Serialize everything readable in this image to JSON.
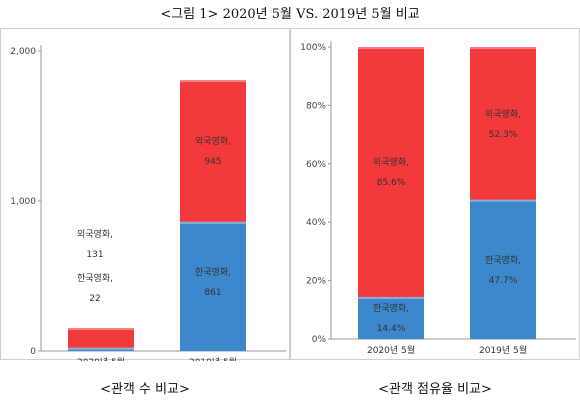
{
  "title": "<그림 1> 2020년 5월 VS. 2019년 5월 비교",
  "captions": [
    "<관객 수 비교>",
    "<관객 점유율 비교>"
  ],
  "colors": {
    "foreign": "#f23a3a",
    "korean": "#3d87cc",
    "axis": "#999999"
  },
  "chart_data": [
    {
      "type": "bar",
      "stacked": true,
      "categories": [
        "2020년 5월",
        "2019년 5월"
      ],
      "series": [
        {
          "name": "한국영화",
          "values": [
            22,
            861
          ],
          "labels": [
            "한국영화,",
            "한국영화,"
          ],
          "value_labels": [
            "22",
            "861"
          ]
        },
        {
          "name": "외국영화",
          "values": [
            131,
            945
          ],
          "labels": [
            "외국영화,",
            "외국영화,"
          ],
          "value_labels": [
            "131",
            "945"
          ]
        }
      ],
      "yticks": [
        "0",
        "1,000",
        "2,000"
      ],
      "ytick_values": [
        0,
        1000,
        2000
      ],
      "ylim": [
        0,
        2000
      ],
      "grid": false
    },
    {
      "type": "bar",
      "stacked": true,
      "percent": true,
      "categories": [
        "2020년 5월",
        "2019년 5월"
      ],
      "series": [
        {
          "name": "한국영화",
          "values": [
            14.4,
            47.7
          ],
          "labels": [
            "한국영화,",
            "한국영화,"
          ],
          "value_labels": [
            "14.4%",
            "47.7%"
          ]
        },
        {
          "name": "외국영화",
          "values": [
            85.6,
            52.3
          ],
          "labels": [
            "외국영화,",
            "외국영화,"
          ],
          "value_labels": [
            "85.6%",
            "52.3%"
          ]
        }
      ],
      "yticks": [
        "0%",
        "20%",
        "40%",
        "60%",
        "80%",
        "100%"
      ],
      "ytick_values": [
        0,
        20,
        40,
        60,
        80,
        100
      ],
      "ylim": [
        0,
        100
      ],
      "grid": false
    }
  ]
}
